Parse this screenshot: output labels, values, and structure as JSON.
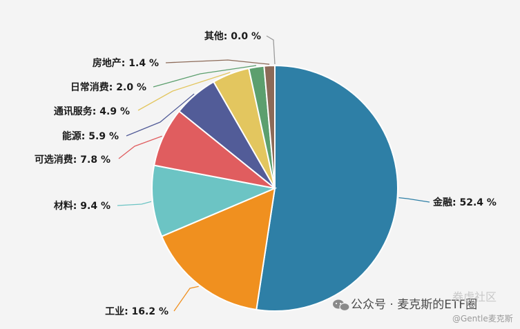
{
  "chart_data": {
    "type": "pie",
    "title": "",
    "slices": [
      {
        "label": "金融",
        "value_text": "52.4 %",
        "value": 52.4,
        "color": "#2e7fa6"
      },
      {
        "label": "工业",
        "value_text": "16.2 %",
        "value": 16.2,
        "color": "#f0901f"
      },
      {
        "label": "材料",
        "value_text": "9.4 %",
        "value": 9.4,
        "color": "#6cc4c4"
      },
      {
        "label": "可选消费",
        "value_text": "7.8 %",
        "value": 7.8,
        "color": "#e05d5f"
      },
      {
        "label": "能源",
        "value_text": "5.9 %",
        "value": 5.9,
        "color": "#525c98"
      },
      {
        "label": "通讯服务",
        "value_text": "4.9 %",
        "value": 4.9,
        "color": "#e3c65f"
      },
      {
        "label": "日常消费",
        "value_text": "2.0 %",
        "value": 2.0,
        "color": "#5c9f6e"
      },
      {
        "label": "房地产",
        "value_text": "1.4 %",
        "value": 1.4,
        "color": "#8c6a58"
      },
      {
        "label": "其他",
        "value_text": "0.0 %",
        "value": 0.0,
        "color": "#9a9a9a"
      }
    ]
  },
  "watermark": {
    "account": "公众号 · 麦克斯的ETF圈",
    "community": "券虎社区",
    "handle": "@Gentle麦克斯"
  }
}
